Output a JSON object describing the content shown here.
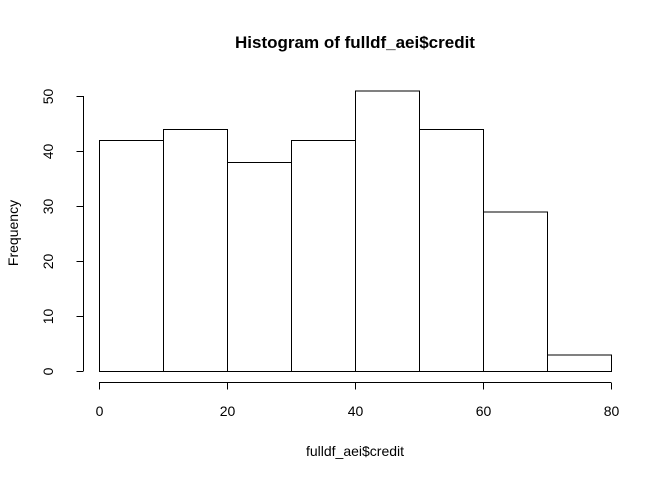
{
  "chart_data": {
    "type": "bar",
    "histogram": true,
    "title": "Histogram of fulldf_aei$credit",
    "xlabel": "fulldf_aei$credit",
    "ylabel": "Frequency",
    "bins": [
      {
        "from": 0,
        "to": 10,
        "count": 42
      },
      {
        "from": 10,
        "to": 20,
        "count": 44
      },
      {
        "from": 20,
        "to": 30,
        "count": 38
      },
      {
        "from": 30,
        "to": 40,
        "count": 42
      },
      {
        "from": 40,
        "to": 50,
        "count": 51
      },
      {
        "from": 50,
        "to": 60,
        "count": 44
      },
      {
        "from": 60,
        "to": 70,
        "count": 29
      },
      {
        "from": 70,
        "to": 80,
        "count": 3
      }
    ],
    "xlim": [
      0,
      80
    ],
    "ylim": [
      0,
      50
    ],
    "x_ticks": [
      0,
      20,
      40,
      60,
      80
    ],
    "y_ticks": [
      0,
      10,
      20,
      30,
      40,
      50
    ],
    "grid": false
  }
}
